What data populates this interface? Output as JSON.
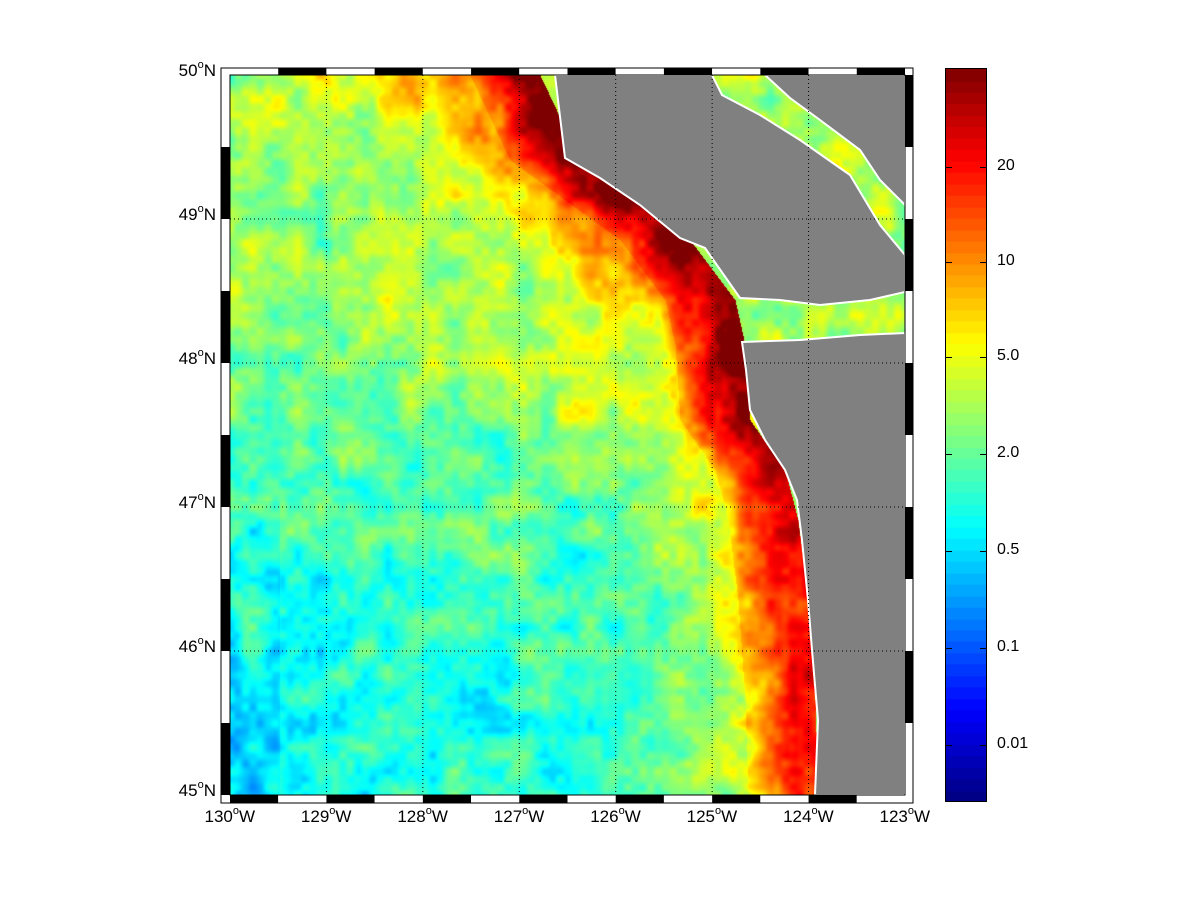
{
  "map": {
    "projection_extent": {
      "lon": [
        -130,
        -123
      ],
      "lat": [
        45,
        50
      ]
    },
    "lat_labels": [
      {
        "deg": "50",
        "hem": "N",
        "value": 50
      },
      {
        "deg": "49",
        "hem": "N",
        "value": 49
      },
      {
        "deg": "48",
        "hem": "N",
        "value": 48
      },
      {
        "deg": "47",
        "hem": "N",
        "value": 47
      },
      {
        "deg": "46",
        "hem": "N",
        "value": 46
      },
      {
        "deg": "45",
        "hem": "N",
        "value": 45
      }
    ],
    "lon_labels": [
      {
        "deg": "130",
        "hem": "W",
        "value": -130
      },
      {
        "deg": "129",
        "hem": "W",
        "value": -129
      },
      {
        "deg": "128",
        "hem": "W",
        "value": -128
      },
      {
        "deg": "127",
        "hem": "W",
        "value": -127
      },
      {
        "deg": "126",
        "hem": "W",
        "value": -126
      },
      {
        "deg": "125",
        "hem": "W",
        "value": -125
      },
      {
        "deg": "124",
        "hem": "W",
        "value": -124
      },
      {
        "deg": "123",
        "hem": "W",
        "value": -123
      }
    ],
    "gridlines": true,
    "land_color": "#808080",
    "coastline_color": "#ffffff",
    "colormap": "jet"
  },
  "colorbar": {
    "ticks": [
      "20",
      "10",
      "5.0",
      "2.0",
      "0.5",
      "0.1",
      "0.01"
    ]
  }
}
